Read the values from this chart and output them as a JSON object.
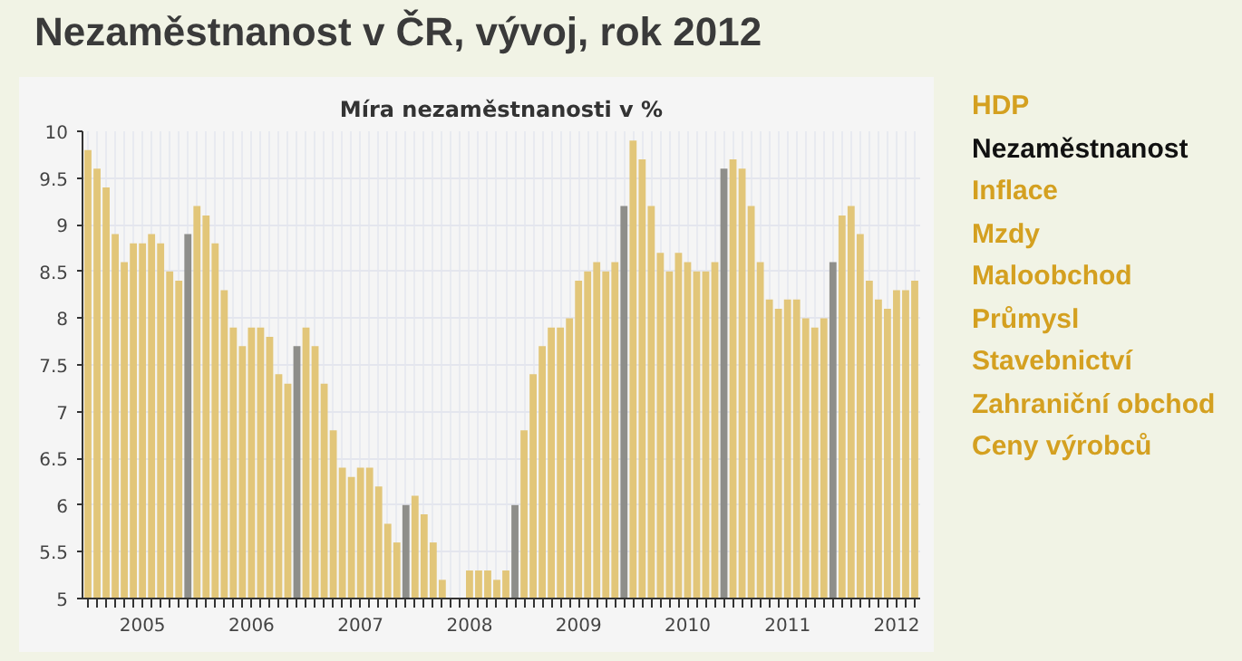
{
  "chart_data": {
    "type": "bar",
    "title": "Nezaměstnanost v ČR, vývoj, rok 2012",
    "subtitle": "Míra nezaměstnanosti v %",
    "categories": [
      null,
      null,
      null,
      null,
      null,
      null,
      "2005",
      null,
      null,
      null,
      null,
      null,
      null,
      null,
      null,
      null,
      null,
      null,
      "2006",
      null,
      null,
      null,
      null,
      null,
      null,
      null,
      null,
      null,
      null,
      null,
      "2007",
      null,
      null,
      null,
      null,
      null,
      null,
      null,
      null,
      null,
      null,
      null,
      "2008",
      null,
      null,
      null,
      null,
      null,
      null,
      null,
      null,
      null,
      null,
      null,
      "2009",
      null,
      null,
      null,
      null,
      null,
      null,
      null,
      null,
      null,
      null,
      null,
      "2010",
      null,
      null,
      null,
      null,
      null,
      null,
      null,
      null,
      null,
      null,
      "2011",
      null,
      null,
      null,
      null,
      null,
      null,
      null,
      null,
      null,
      null,
      null,
      "2012",
      null,
      null
    ],
    "values": [
      9.8,
      9.6,
      9.4,
      8.9,
      8.6,
      8.8,
      8.8,
      8.9,
      8.8,
      8.5,
      8.4,
      8.9,
      9.2,
      9.1,
      8.8,
      8.3,
      7.9,
      7.7,
      7.9,
      7.9,
      7.8,
      7.4,
      7.3,
      7.7,
      7.9,
      7.7,
      7.3,
      6.8,
      6.4,
      6.3,
      6.4,
      6.4,
      6.2,
      5.8,
      5.6,
      6.0,
      6.1,
      5.9,
      5.6,
      5.2,
      5.0,
      5.0,
      5.3,
      5.3,
      5.3,
      5.2,
      5.3,
      6.0,
      6.8,
      7.4,
      7.7,
      7.9,
      7.9,
      8.0,
      8.4,
      8.5,
      8.6,
      8.5,
      8.6,
      9.2,
      9.9,
      9.7,
      9.2,
      8.7,
      8.5,
      8.7,
      8.6,
      8.5,
      8.5,
      8.6,
      9.6,
      9.7,
      9.6,
      9.2,
      8.6,
      8.2,
      8.1,
      8.2,
      8.2,
      8.0,
      7.9,
      8.0,
      8.6,
      9.1,
      9.2,
      8.9,
      8.4,
      8.2,
      8.1,
      8.3,
      8.3,
      8.4
    ],
    "colors": [
      "#e2c679",
      "#e2c679",
      "#e2c679",
      "#e2c679",
      "#e2c679",
      "#e2c679",
      "#e2c679",
      "#e2c679",
      "#e2c679",
      "#e2c679",
      "#e2c679",
      "#8e8e8a",
      "#e2c679",
      "#e2c679",
      "#e2c679",
      "#e2c679",
      "#e2c679",
      "#e2c679",
      "#e2c679",
      "#e2c679",
      "#e2c679",
      "#e2c679",
      "#e2c679",
      "#8e8e8a",
      "#e2c679",
      "#e2c679",
      "#e2c679",
      "#e2c679",
      "#e2c679",
      "#e2c679",
      "#e2c679",
      "#e2c679",
      "#e2c679",
      "#e2c679",
      "#e2c679",
      "#8e8e8a",
      "#e2c679",
      "#e2c679",
      "#e2c679",
      "#e2c679",
      "#e2c679",
      "#e2c679",
      "#e2c679",
      "#e2c679",
      "#e2c679",
      "#e2c679",
      "#e2c679",
      "#8e8e8a",
      "#e2c679",
      "#e2c679",
      "#e2c679",
      "#e2c679",
      "#e2c679",
      "#e2c679",
      "#e2c679",
      "#e2c679",
      "#e2c679",
      "#e2c679",
      "#e2c679",
      "#8e8e8a",
      "#e2c679",
      "#e2c679",
      "#e2c679",
      "#e2c679",
      "#e2c679",
      "#e2c679",
      "#e2c679",
      "#e2c679",
      "#e2c679",
      "#e2c679",
      "#8e8e8a",
      "#e2c679",
      "#e2c679",
      "#e2c679",
      "#e2c679",
      "#e2c679",
      "#e2c679",
      "#e2c679",
      "#e2c679",
      "#e2c679",
      "#e2c679",
      "#e2c679",
      "#8e8e8a",
      "#e2c679",
      "#e2c679",
      "#e2c679",
      "#e2c679",
      "#e2c679",
      "#e2c679",
      "#e2c679",
      "#e2c679",
      "#e2c679"
    ],
    "ylim": [
      5,
      10
    ],
    "yticks": [
      5,
      5.5,
      6,
      6.5,
      7,
      7.5,
      8,
      8.5,
      9,
      9.5,
      10
    ],
    "grid": true,
    "annotations": [
      "HDP",
      "Nezaměstnanost",
      "Inflace",
      "Mzdy",
      "Maloobchod",
      "Průmysl",
      "Stavebnictví",
      "Zahraniční obchod",
      "Ceny výrobců"
    ]
  }
}
